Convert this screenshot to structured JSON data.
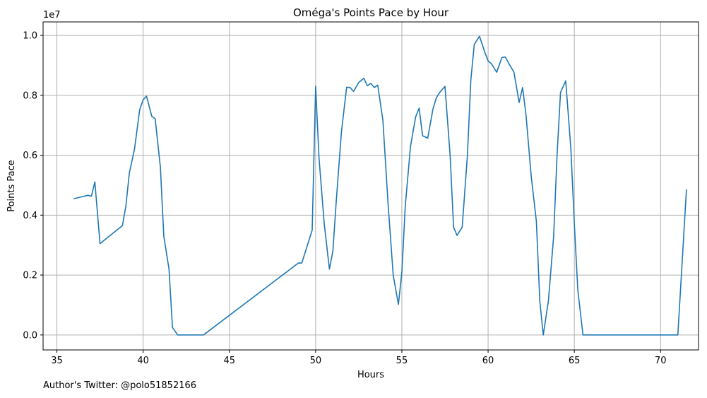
{
  "chart_data": {
    "type": "line",
    "title": "Oméga's Points Pace by Hour",
    "xlabel": "Hours",
    "ylabel": "Points Pace",
    "y_scale_label": "1e7",
    "xlim": [
      34.2,
      72.2
    ],
    "ylim": [
      -0.05,
      1.045
    ],
    "x_ticks": [
      35,
      40,
      45,
      50,
      55,
      60,
      65,
      70
    ],
    "y_ticks": [
      0.0,
      0.2,
      0.4,
      0.6,
      0.8,
      1.0
    ],
    "x_tick_labels": [
      "35",
      "40",
      "45",
      "50",
      "55",
      "60",
      "65",
      "70"
    ],
    "y_tick_labels": [
      "0.0",
      "0.2",
      "0.4",
      "0.6",
      "0.8",
      "1.0"
    ],
    "grid": true,
    "series": [
      {
        "color": "#1f77b4",
        "x": [
          36.0,
          36.5,
          36.8,
          37.0,
          37.2,
          37.5,
          38.8,
          39.0,
          39.2,
          39.5,
          39.8,
          40.0,
          40.2,
          40.5,
          40.7,
          41.0,
          41.2,
          41.5,
          41.7,
          42.0,
          43.5,
          49.0,
          49.2,
          49.8,
          50.0,
          50.2,
          50.5,
          50.8,
          51.0,
          51.2,
          51.5,
          51.8,
          52.0,
          52.2,
          52.5,
          52.8,
          53.0,
          53.2,
          53.4,
          53.6,
          53.9,
          54.2,
          54.5,
          54.8,
          55.0,
          55.2,
          55.5,
          55.8,
          56.0,
          56.2,
          56.5,
          56.8,
          57.0,
          57.2,
          57.5,
          57.8,
          58.0,
          58.2,
          58.5,
          58.8,
          59.0,
          59.2,
          59.5,
          59.8,
          60.0,
          60.2,
          60.5,
          60.8,
          61.0,
          61.2,
          61.5,
          61.8,
          62.0,
          62.2,
          62.5,
          62.8,
          63.0,
          63.2,
          63.5,
          63.8,
          64.0,
          64.2,
          64.5,
          64.8,
          65.0,
          65.2,
          65.5,
          71.0,
          71.5
        ],
        "y": [
          0.455,
          0.462,
          0.466,
          0.463,
          0.511,
          0.305,
          0.365,
          0.43,
          0.54,
          0.62,
          0.752,
          0.785,
          0.797,
          0.73,
          0.722,
          0.56,
          0.33,
          0.22,
          0.025,
          0.0,
          0.0,
          0.24,
          0.24,
          0.35,
          0.83,
          0.59,
          0.37,
          0.22,
          0.28,
          0.45,
          0.68,
          0.827,
          0.826,
          0.813,
          0.843,
          0.857,
          0.832,
          0.84,
          0.826,
          0.834,
          0.717,
          0.44,
          0.2,
          0.102,
          0.21,
          0.43,
          0.63,
          0.728,
          0.757,
          0.665,
          0.657,
          0.753,
          0.792,
          0.81,
          0.83,
          0.6,
          0.36,
          0.332,
          0.36,
          0.6,
          0.85,
          0.97,
          0.997,
          0.945,
          0.915,
          0.905,
          0.877,
          0.926,
          0.928,
          0.906,
          0.877,
          0.776,
          0.826,
          0.733,
          0.53,
          0.38,
          0.112,
          0.0,
          0.115,
          0.33,
          0.6,
          0.81,
          0.848,
          0.62,
          0.37,
          0.15,
          0.0,
          0.0,
          0.485
        ]
      }
    ]
  },
  "footer": {
    "note": "Author's Twitter: @polo51852166"
  }
}
